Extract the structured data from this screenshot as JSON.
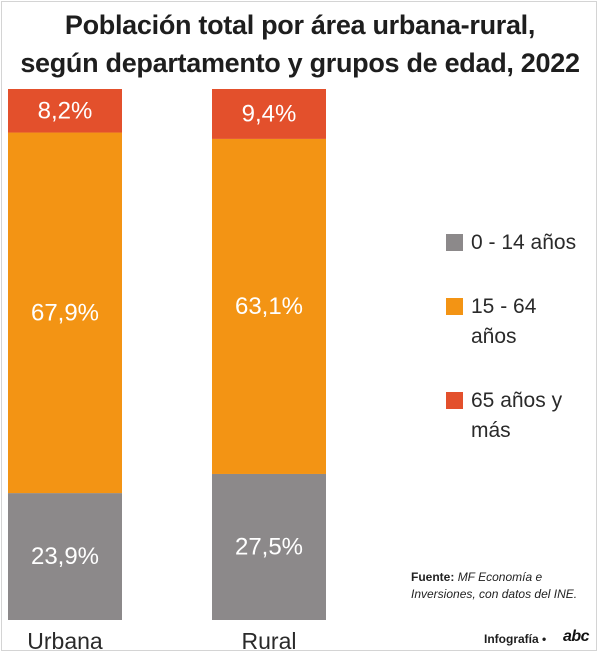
{
  "title_lines": [
    "Población total por área urbana-rural,",
    "según departamento y grupos de edad, 2022"
  ],
  "chart_data": {
    "type": "bar",
    "stacked": true,
    "percent": true,
    "title": "Población total por área urbana-rural, según departamento y grupos de edad, 2022",
    "categories": [
      "Urbana",
      "Rural"
    ],
    "series": [
      {
        "name": "0 - 14 años",
        "color": "#8c898a",
        "values": [
          23.9,
          27.5
        ],
        "labels": [
          "23,9%",
          "27,5%"
        ]
      },
      {
        "name": "15 - 64 años",
        "color": "#f39414",
        "values": [
          67.9,
          63.1
        ],
        "labels": [
          "67,9%",
          "63,1%"
        ]
      },
      {
        "name": "65 años y más",
        "color": "#e3502c",
        "values": [
          8.2,
          9.4
        ],
        "labels": [
          "8,2%",
          "9,4%"
        ]
      }
    ],
    "ylim": [
      0,
      100
    ],
    "grid": false,
    "legend": "right"
  },
  "legend": {
    "items": [
      {
        "label": "0 - 14 años",
        "color": "#8c898a"
      },
      {
        "label": "15 - 64 años",
        "color": "#f39414"
      },
      {
        "label": "65 años y más",
        "color": "#e3502c"
      }
    ]
  },
  "source": {
    "label": "Fuente:",
    "text": "MF Economía e Inversiones, con datos del INE."
  },
  "credit": {
    "label": "Infografía •",
    "logo": "abc"
  }
}
